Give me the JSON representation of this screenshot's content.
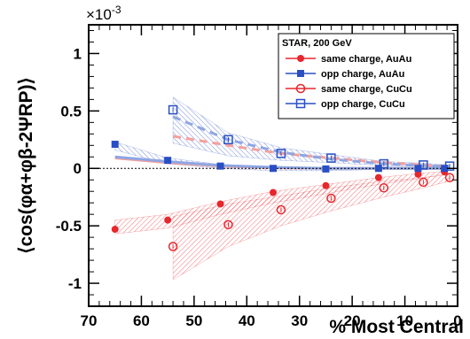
{
  "colors": {
    "same_charge": "#e8262d",
    "same_charge_light": "#f4a09c",
    "opp_charge": "#2a4fc4",
    "opp_charge_light": "#8fa6e2"
  },
  "chart_data": {
    "type": "scatter",
    "multiplier_label": "×10",
    "multiplier_exponent": "-3",
    "ylabel": "⟨cos(φα+φβ-2ΨRP)⟩",
    "xlabel": "% Most Central",
    "xlim": [
      70,
      0
    ],
    "ylim": [
      -1.2,
      1.25
    ],
    "x_ticks": [
      70,
      60,
      50,
      40,
      30,
      20,
      10,
      0
    ],
    "y_ticks": [
      1,
      0.5,
      0,
      -0.5,
      -1
    ],
    "y_tick_labels": [
      "1",
      "0.5",
      "0",
      "-0.5",
      "-1"
    ],
    "legend": {
      "title": "STAR,  200 GeV",
      "position": "top-right",
      "entries": [
        "same charge, AuAu",
        "opp charge, AuAu",
        "same charge, CuCu",
        "opp charge, CuCu"
      ]
    },
    "series": [
      {
        "name": "same charge, AuAu",
        "marker": "filled-circle",
        "color": "#e8262d",
        "x": [
          65,
          55,
          45,
          35,
          25,
          15,
          7.5,
          2.5
        ],
        "y": [
          -0.53,
          -0.45,
          -0.31,
          -0.21,
          -0.15,
          -0.08,
          -0.05,
          -0.03
        ]
      },
      {
        "name": "opp charge, AuAu",
        "marker": "filled-square",
        "color": "#2a4fc4",
        "x": [
          65,
          55,
          45,
          35,
          25,
          15,
          7.5,
          2.5
        ],
        "y": [
          0.21,
          0.07,
          0.02,
          0.0,
          -0.005,
          0.0,
          0.0,
          0.0
        ]
      },
      {
        "name": "same charge, CuCu",
        "marker": "open-circle",
        "color": "#e8262d",
        "x": [
          54,
          43.5,
          33.5,
          24,
          14,
          6.5,
          1.5
        ],
        "y": [
          -0.68,
          -0.49,
          -0.36,
          -0.26,
          -0.17,
          -0.12,
          -0.08
        ]
      },
      {
        "name": "opp charge, CuCu",
        "marker": "open-square",
        "color": "#2a4fc4",
        "x": [
          54,
          43.5,
          33.5,
          24,
          14,
          6.5,
          1.5
        ],
        "y": [
          0.51,
          0.25,
          0.13,
          0.09,
          0.04,
          0.03,
          0.02
        ]
      }
    ],
    "bands": [
      {
        "name": "same charge, AuAu",
        "color": "#e8262d",
        "x": [
          65,
          55,
          45,
          35,
          25,
          15,
          7.5,
          2.5
        ],
        "low": [
          -0.57,
          -0.52,
          -0.4,
          -0.3,
          -0.22,
          -0.14,
          -0.09,
          -0.05
        ],
        "high": [
          -0.45,
          -0.4,
          -0.29,
          -0.2,
          -0.14,
          -0.08,
          -0.045,
          -0.025
        ]
      },
      {
        "name": "opp charge, AuAu",
        "color": "#2a4fc4",
        "x": [
          65,
          55,
          45,
          35,
          25,
          15,
          7.5,
          2.5
        ],
        "low": [
          0.16,
          0.04,
          0.0,
          -0.02,
          -0.02,
          -0.01,
          -0.01,
          -0.01
        ],
        "high": [
          0.23,
          0.09,
          0.035,
          0.015,
          0.01,
          0.01,
          0.01,
          0.01
        ]
      },
      {
        "name": "same charge, CuCu",
        "color": "#e8262d",
        "x": [
          54,
          43.5,
          33.5,
          24,
          14,
          6.5,
          1.5
        ],
        "low": [
          -0.97,
          -0.68,
          -0.5,
          -0.37,
          -0.25,
          -0.17,
          -0.11
        ],
        "high": [
          -0.42,
          -0.31,
          -0.24,
          -0.17,
          -0.11,
          -0.08,
          -0.055
        ]
      },
      {
        "name": "opp charge, CuCu",
        "color": "#2a4fc4",
        "x": [
          54,
          43.5,
          33.5,
          24,
          14,
          6.5,
          1.5
        ],
        "low": [
          0.22,
          0.11,
          0.07,
          0.05,
          0.025,
          0.015,
          0.01
        ],
        "high": [
          0.62,
          0.31,
          0.18,
          0.12,
          0.06,
          0.045,
          0.03
        ]
      }
    ],
    "curves": [
      {
        "name": "same charge, AuAu",
        "color": "#f4a09c",
        "style": "solid",
        "x": [
          65,
          55,
          45,
          35,
          25,
          15,
          7.5,
          2.5
        ],
        "y": [
          0.09,
          0.05,
          0.02,
          0.005,
          0.0,
          0.0,
          0.0,
          0.0
        ]
      },
      {
        "name": "opp charge, AuAu",
        "color": "#8fa6e2",
        "style": "solid",
        "x": [
          65,
          55,
          45,
          35,
          25,
          15,
          7.5,
          2.5
        ],
        "y": [
          0.1,
          0.06,
          0.025,
          0.01,
          0.0,
          0.0,
          0.0,
          0.0
        ]
      },
      {
        "name": "same charge, CuCu",
        "color": "#f4a09c",
        "style": "dashed",
        "x": [
          54,
          43.5,
          33.5,
          24,
          14,
          6.5,
          1.5
        ],
        "y": [
          0.28,
          0.2,
          0.13,
          0.09,
          0.05,
          0.03,
          0.015
        ]
      },
      {
        "name": "opp charge, CuCu",
        "color": "#8fa6e2",
        "style": "dashed",
        "x": [
          54,
          43.5,
          33.5,
          24,
          14,
          6.5,
          1.5
        ],
        "y": [
          0.45,
          0.25,
          0.14,
          0.08,
          0.04,
          0.025,
          0.015
        ]
      }
    ]
  }
}
